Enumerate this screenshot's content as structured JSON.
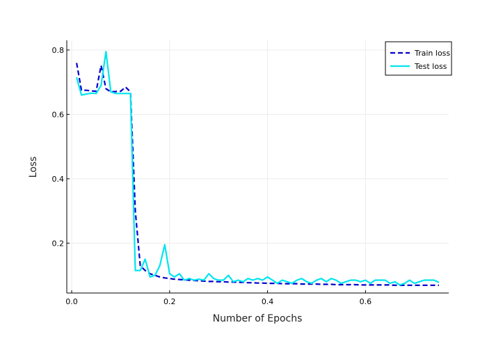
{
  "chart_data": {
    "type": "line",
    "title": "",
    "xlabel": "Number of Epochs",
    "ylabel": "Loss",
    "xlim": [
      -0.01,
      0.77
    ],
    "ylim": [
      0.045,
      0.83
    ],
    "xticks": [
      0.0,
      0.2,
      0.4,
      0.6
    ],
    "xtick_labels": [
      "0.0",
      "0.2",
      "0.4",
      "0.6"
    ],
    "yticks": [
      0.2,
      0.4,
      0.6,
      0.8
    ],
    "ytick_labels": [
      "0.2",
      "0.4",
      "0.6",
      "0.8"
    ],
    "grid": true,
    "legend_position": "top-right",
    "series": [
      {
        "name": "Train loss",
        "color": "#0000cc",
        "style": "dashed",
        "x": [
          0.01,
          0.02,
          0.03,
          0.04,
          0.05,
          0.06,
          0.07,
          0.08,
          0.09,
          0.1,
          0.11,
          0.12,
          0.13,
          0.14,
          0.15,
          0.16,
          0.17,
          0.18,
          0.19,
          0.2,
          0.21,
          0.22,
          0.23,
          0.24,
          0.25,
          0.26,
          0.27,
          0.28,
          0.29,
          0.3,
          0.31,
          0.32,
          0.33,
          0.34,
          0.35,
          0.36,
          0.37,
          0.38,
          0.39,
          0.4,
          0.41,
          0.42,
          0.43,
          0.44,
          0.45,
          0.46,
          0.47,
          0.48,
          0.49,
          0.5,
          0.51,
          0.52,
          0.53,
          0.54,
          0.55,
          0.56,
          0.57,
          0.58,
          0.59,
          0.6,
          0.61,
          0.62,
          0.63,
          0.64,
          0.65,
          0.66,
          0.67,
          0.68,
          0.69,
          0.7,
          0.71,
          0.72,
          0.73,
          0.74,
          0.75
        ],
        "values": [
          0.76,
          0.675,
          0.675,
          0.673,
          0.672,
          0.752,
          0.68,
          0.67,
          0.671,
          0.672,
          0.685,
          0.67,
          0.3,
          0.13,
          0.115,
          0.105,
          0.1,
          0.095,
          0.092,
          0.09,
          0.088,
          0.087,
          0.086,
          0.085,
          0.084,
          0.083,
          0.082,
          0.081,
          0.081,
          0.08,
          0.08,
          0.079,
          0.079,
          0.078,
          0.078,
          0.077,
          0.077,
          0.076,
          0.076,
          0.075,
          0.075,
          0.075,
          0.074,
          0.074,
          0.074,
          0.074,
          0.073,
          0.073,
          0.073,
          0.073,
          0.072,
          0.072,
          0.072,
          0.071,
          0.071,
          0.071,
          0.071,
          0.071,
          0.07,
          0.07,
          0.07,
          0.07,
          0.07,
          0.07,
          0.07,
          0.069,
          0.069,
          0.069,
          0.069,
          0.069,
          0.069,
          0.069,
          0.069,
          0.069,
          0.069
        ]
      },
      {
        "name": "Test loss",
        "color": "#00e5ee",
        "style": "solid",
        "x": [
          0.01,
          0.02,
          0.03,
          0.04,
          0.05,
          0.06,
          0.07,
          0.08,
          0.09,
          0.1,
          0.11,
          0.12,
          0.13,
          0.14,
          0.15,
          0.16,
          0.17,
          0.18,
          0.19,
          0.2,
          0.21,
          0.22,
          0.23,
          0.24,
          0.25,
          0.26,
          0.27,
          0.28,
          0.29,
          0.3,
          0.31,
          0.32,
          0.33,
          0.34,
          0.35,
          0.36,
          0.37,
          0.38,
          0.39,
          0.4,
          0.41,
          0.42,
          0.43,
          0.44,
          0.45,
          0.46,
          0.47,
          0.48,
          0.49,
          0.5,
          0.51,
          0.52,
          0.53,
          0.54,
          0.55,
          0.56,
          0.57,
          0.58,
          0.59,
          0.6,
          0.61,
          0.62,
          0.63,
          0.64,
          0.65,
          0.66,
          0.67,
          0.68,
          0.69,
          0.7,
          0.71,
          0.72,
          0.73,
          0.74,
          0.75
        ],
        "values": [
          0.715,
          0.66,
          0.663,
          0.666,
          0.665,
          0.69,
          0.795,
          0.67,
          0.665,
          0.665,
          0.665,
          0.665,
          0.115,
          0.115,
          0.15,
          0.095,
          0.1,
          0.13,
          0.195,
          0.105,
          0.095,
          0.105,
          0.085,
          0.09,
          0.085,
          0.088,
          0.085,
          0.105,
          0.09,
          0.085,
          0.085,
          0.1,
          0.08,
          0.085,
          0.08,
          0.09,
          0.085,
          0.09,
          0.085,
          0.095,
          0.085,
          0.075,
          0.085,
          0.08,
          0.075,
          0.085,
          0.09,
          0.08,
          0.075,
          0.085,
          0.09,
          0.08,
          0.09,
          0.085,
          0.075,
          0.08,
          0.085,
          0.085,
          0.08,
          0.085,
          0.075,
          0.085,
          0.085,
          0.085,
          0.075,
          0.08,
          0.07,
          0.075,
          0.085,
          0.075,
          0.08,
          0.085,
          0.085,
          0.085,
          0.078
        ]
      }
    ]
  }
}
